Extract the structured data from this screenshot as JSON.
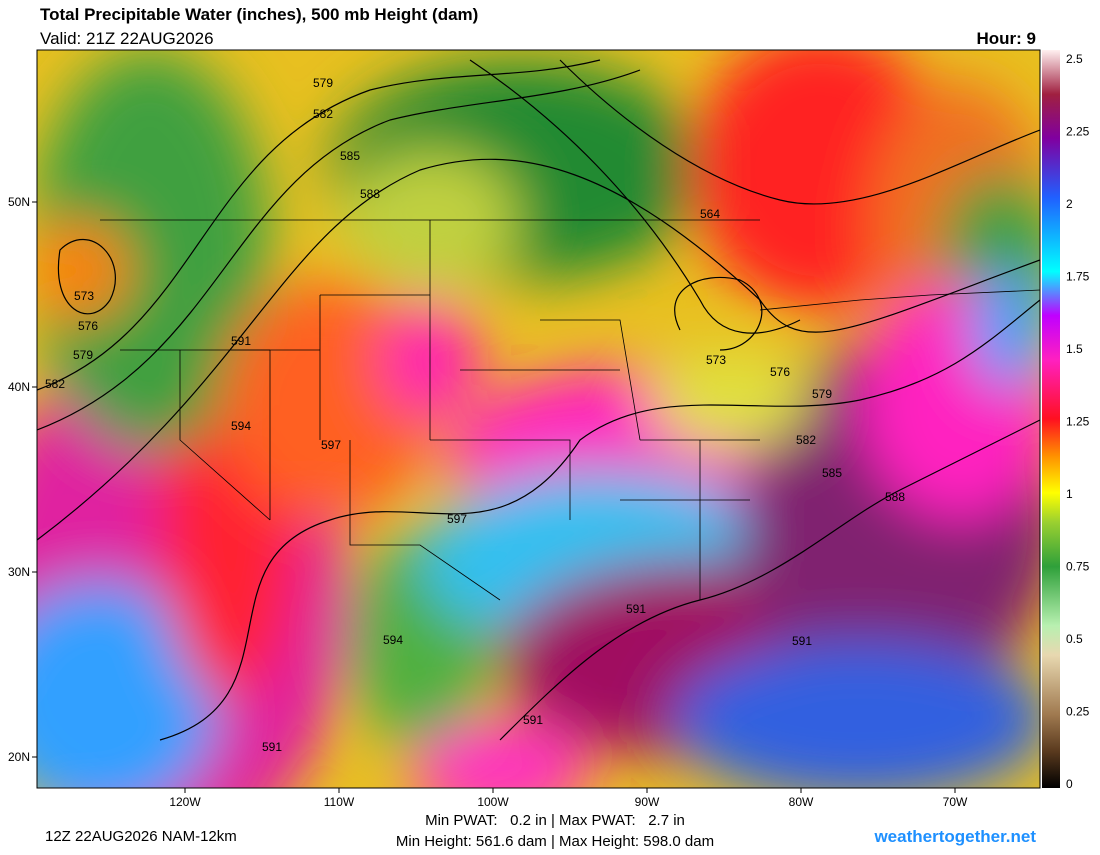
{
  "header": {
    "title": "Total Precipitable Water (inches), 500 mb Height (dam)",
    "valid": "Valid: 21Z 22AUG2026",
    "hour": "Hour: 9"
  },
  "colorbar": {
    "ticks": [
      "0",
      "0.25",
      "0.5",
      "0.75",
      "1",
      "1.25",
      "1.5",
      "1.75",
      "2",
      "2.25",
      "2.5"
    ]
  },
  "axes": {
    "lat_labels": [
      "50N",
      "40N",
      "30N",
      "20N"
    ],
    "lon_labels": [
      "120W",
      "110W",
      "100W",
      "90W",
      "80W",
      "70W"
    ]
  },
  "contour_labels": [
    "579",
    "582",
    "585",
    "588",
    "564",
    "573",
    "576",
    "579",
    "582",
    "591",
    "594",
    "597",
    "597",
    "594",
    "591",
    "591",
    "591",
    "573",
    "576",
    "579",
    "582",
    "585",
    "588",
    "591"
  ],
  "footer": {
    "run": "12Z 22AUG2026 NAM-12km",
    "stats": "Min PWAT:   0.2 in | Max PWAT:   2.7 in",
    "heights": "Min Height: 561.6 dam | Max Height: 598.0 dam",
    "site": "weathertogether.net"
  }
}
